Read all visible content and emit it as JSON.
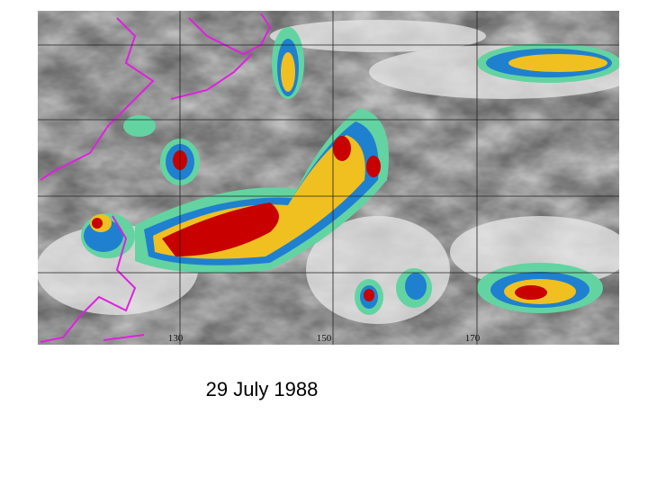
{
  "map": {
    "longitude_labels": [
      "130",
      "150",
      "170"
    ]
  },
  "caption": "29 July 1988"
}
